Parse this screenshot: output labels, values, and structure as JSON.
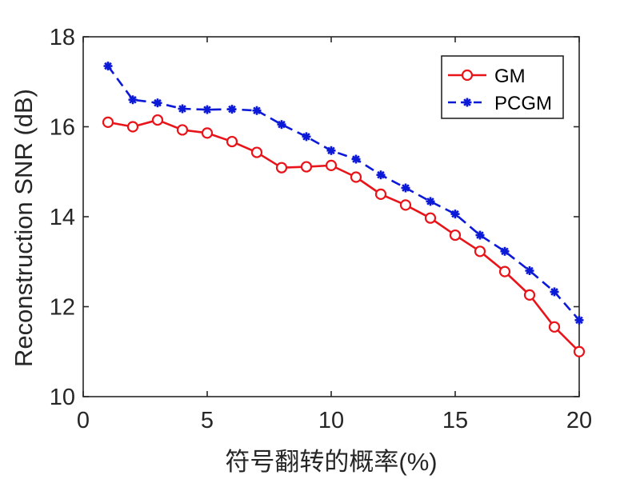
{
  "chart_data": {
    "type": "line",
    "title": "",
    "xlabel": "符号翻转的概率(%)",
    "ylabel": "Reconstruction SNR (dB)",
    "xlim": [
      0,
      20
    ],
    "ylim": [
      10,
      18
    ],
    "xticks": [
      0,
      5,
      10,
      15,
      20
    ],
    "yticks": [
      10,
      12,
      14,
      16,
      18
    ],
    "xtick_labels": [
      "0",
      "5",
      "10",
      "15",
      "20"
    ],
    "ytick_labels": [
      "10",
      "12",
      "14",
      "16",
      "18"
    ],
    "grid": false,
    "legend_position": "top-right",
    "x": [
      1,
      2,
      3,
      4,
      5,
      6,
      7,
      8,
      9,
      10,
      11,
      12,
      13,
      14,
      15,
      16,
      17,
      18,
      19,
      20
    ],
    "series": [
      {
        "name": "GM",
        "color": "#e8141a",
        "line_style": "solid",
        "marker": "circle",
        "values": [
          16.1,
          16.0,
          16.15,
          15.93,
          15.86,
          15.67,
          15.43,
          15.09,
          15.11,
          15.14,
          14.88,
          14.5,
          14.26,
          13.97,
          13.59,
          13.23,
          12.78,
          12.26,
          11.55,
          11.0
        ]
      },
      {
        "name": "PCGM",
        "color": "#0c1ad8",
        "line_style": "dashed",
        "marker": "asterisk",
        "values": [
          17.35,
          16.6,
          16.53,
          16.4,
          16.38,
          16.39,
          16.36,
          16.05,
          15.78,
          15.47,
          15.28,
          14.93,
          14.64,
          14.34,
          14.06,
          13.59,
          13.23,
          12.8,
          12.33,
          11.7
        ]
      }
    ]
  }
}
